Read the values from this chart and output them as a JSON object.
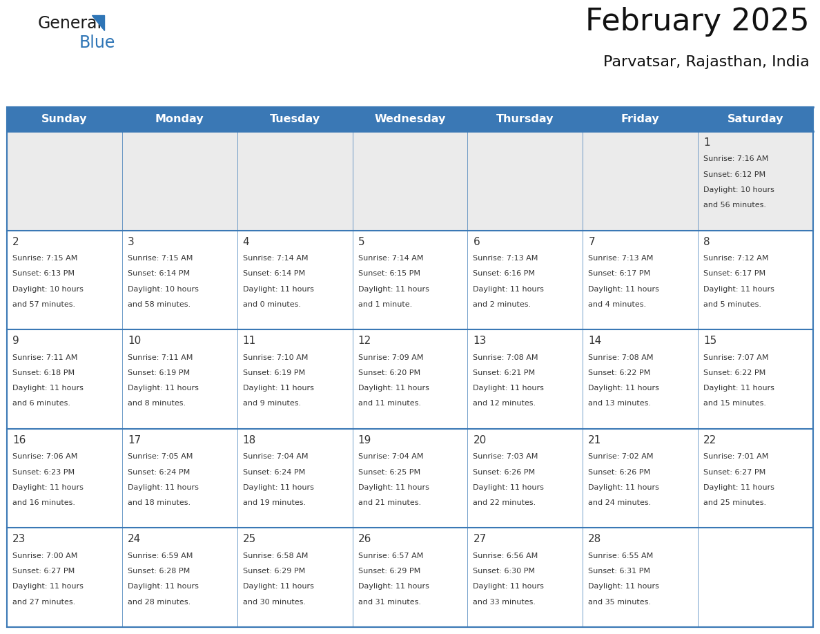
{
  "title": "February 2025",
  "subtitle": "Parvatsar, Rajasthan, India",
  "days_of_week": [
    "Sunday",
    "Monday",
    "Tuesday",
    "Wednesday",
    "Thursday",
    "Friday",
    "Saturday"
  ],
  "header_bg": "#3A78B5",
  "header_text": "#FFFFFF",
  "row0_bg": "#EBEBEB",
  "cell_bg": "#FFFFFF",
  "border_color": "#3A78B5",
  "text_color": "#333333",
  "calendar_data": [
    [
      null,
      null,
      null,
      null,
      null,
      null,
      {
        "day": "1",
        "sunrise": "7:16 AM",
        "sunset": "6:12 PM",
        "daylight1": "10 hours",
        "daylight2": "and 56 minutes."
      }
    ],
    [
      {
        "day": "2",
        "sunrise": "7:15 AM",
        "sunset": "6:13 PM",
        "daylight1": "10 hours",
        "daylight2": "and 57 minutes."
      },
      {
        "day": "3",
        "sunrise": "7:15 AM",
        "sunset": "6:14 PM",
        "daylight1": "10 hours",
        "daylight2": "and 58 minutes."
      },
      {
        "day": "4",
        "sunrise": "7:14 AM",
        "sunset": "6:14 PM",
        "daylight1": "11 hours",
        "daylight2": "and 0 minutes."
      },
      {
        "day": "5",
        "sunrise": "7:14 AM",
        "sunset": "6:15 PM",
        "daylight1": "11 hours",
        "daylight2": "and 1 minute."
      },
      {
        "day": "6",
        "sunrise": "7:13 AM",
        "sunset": "6:16 PM",
        "daylight1": "11 hours",
        "daylight2": "and 2 minutes."
      },
      {
        "day": "7",
        "sunrise": "7:13 AM",
        "sunset": "6:17 PM",
        "daylight1": "11 hours",
        "daylight2": "and 4 minutes."
      },
      {
        "day": "8",
        "sunrise": "7:12 AM",
        "sunset": "6:17 PM",
        "daylight1": "11 hours",
        "daylight2": "and 5 minutes."
      }
    ],
    [
      {
        "day": "9",
        "sunrise": "7:11 AM",
        "sunset": "6:18 PM",
        "daylight1": "11 hours",
        "daylight2": "and 6 minutes."
      },
      {
        "day": "10",
        "sunrise": "7:11 AM",
        "sunset": "6:19 PM",
        "daylight1": "11 hours",
        "daylight2": "and 8 minutes."
      },
      {
        "day": "11",
        "sunrise": "7:10 AM",
        "sunset": "6:19 PM",
        "daylight1": "11 hours",
        "daylight2": "and 9 minutes."
      },
      {
        "day": "12",
        "sunrise": "7:09 AM",
        "sunset": "6:20 PM",
        "daylight1": "11 hours",
        "daylight2": "and 11 minutes."
      },
      {
        "day": "13",
        "sunrise": "7:08 AM",
        "sunset": "6:21 PM",
        "daylight1": "11 hours",
        "daylight2": "and 12 minutes."
      },
      {
        "day": "14",
        "sunrise": "7:08 AM",
        "sunset": "6:22 PM",
        "daylight1": "11 hours",
        "daylight2": "and 13 minutes."
      },
      {
        "day": "15",
        "sunrise": "7:07 AM",
        "sunset": "6:22 PM",
        "daylight1": "11 hours",
        "daylight2": "and 15 minutes."
      }
    ],
    [
      {
        "day": "16",
        "sunrise": "7:06 AM",
        "sunset": "6:23 PM",
        "daylight1": "11 hours",
        "daylight2": "and 16 minutes."
      },
      {
        "day": "17",
        "sunrise": "7:05 AM",
        "sunset": "6:24 PM",
        "daylight1": "11 hours",
        "daylight2": "and 18 minutes."
      },
      {
        "day": "18",
        "sunrise": "7:04 AM",
        "sunset": "6:24 PM",
        "daylight1": "11 hours",
        "daylight2": "and 19 minutes."
      },
      {
        "day": "19",
        "sunrise": "7:04 AM",
        "sunset": "6:25 PM",
        "daylight1": "11 hours",
        "daylight2": "and 21 minutes."
      },
      {
        "day": "20",
        "sunrise": "7:03 AM",
        "sunset": "6:26 PM",
        "daylight1": "11 hours",
        "daylight2": "and 22 minutes."
      },
      {
        "day": "21",
        "sunrise": "7:02 AM",
        "sunset": "6:26 PM",
        "daylight1": "11 hours",
        "daylight2": "and 24 minutes."
      },
      {
        "day": "22",
        "sunrise": "7:01 AM",
        "sunset": "6:27 PM",
        "daylight1": "11 hours",
        "daylight2": "and 25 minutes."
      }
    ],
    [
      {
        "day": "23",
        "sunrise": "7:00 AM",
        "sunset": "6:27 PM",
        "daylight1": "11 hours",
        "daylight2": "and 27 minutes."
      },
      {
        "day": "24",
        "sunrise": "6:59 AM",
        "sunset": "6:28 PM",
        "daylight1": "11 hours",
        "daylight2": "and 28 minutes."
      },
      {
        "day": "25",
        "sunrise": "6:58 AM",
        "sunset": "6:29 PM",
        "daylight1": "11 hours",
        "daylight2": "and 30 minutes."
      },
      {
        "day": "26",
        "sunrise": "6:57 AM",
        "sunset": "6:29 PM",
        "daylight1": "11 hours",
        "daylight2": "and 31 minutes."
      },
      {
        "day": "27",
        "sunrise": "6:56 AM",
        "sunset": "6:30 PM",
        "daylight1": "11 hours",
        "daylight2": "and 33 minutes."
      },
      {
        "day": "28",
        "sunrise": "6:55 AM",
        "sunset": "6:31 PM",
        "daylight1": "11 hours",
        "daylight2": "and 35 minutes."
      },
      null
    ]
  ],
  "logo_general_color": "#1a1a1a",
  "logo_blue_color": "#2E75B6",
  "logo_triangle_color": "#2E75B6"
}
